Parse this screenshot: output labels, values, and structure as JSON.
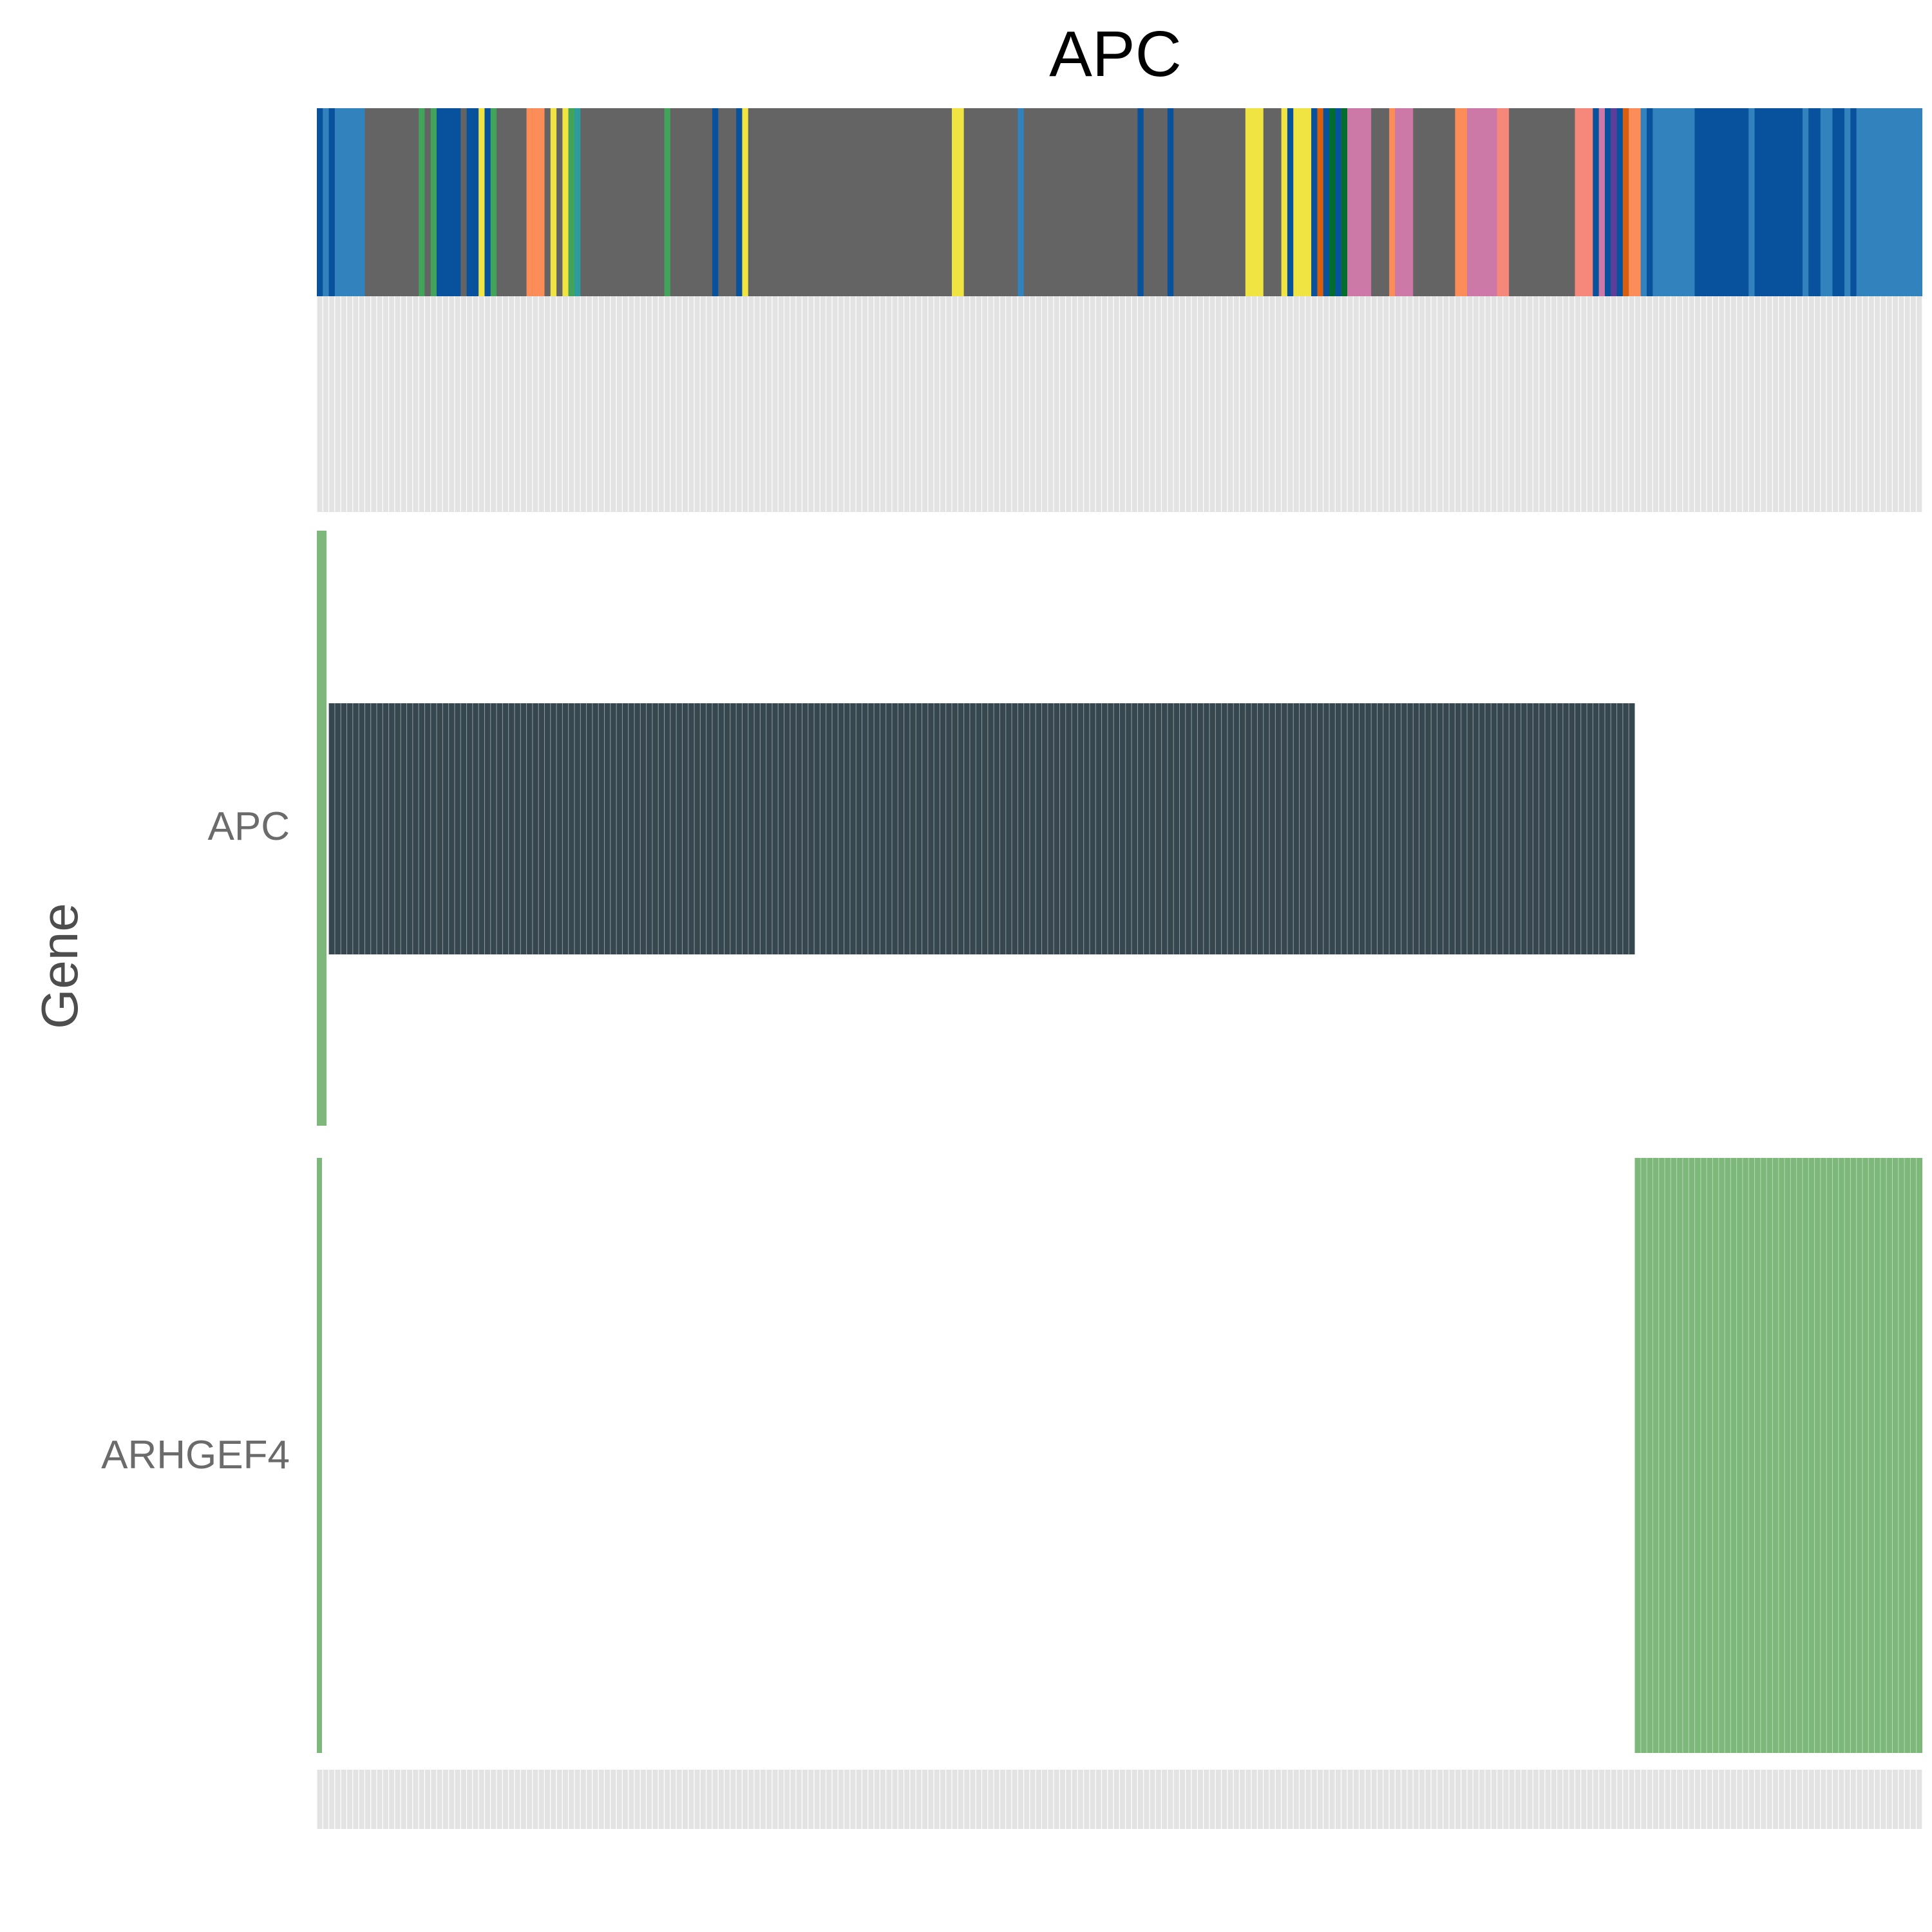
{
  "chart_data": {
    "type": "heatmap",
    "title": "APC",
    "ylabel": "Gene",
    "genes": [
      "APC",
      "ARHGEF4"
    ],
    "n_samples": 268,
    "colors": {
      "gray": "#646464",
      "blue_mid": "#3182bd",
      "blue_dark": "#08519c",
      "green": "#41a45a",
      "yellow": "#f0e442",
      "orange": "#fc8d59",
      "pink": "#cc79a7",
      "salmon": "#f5877b",
      "dkgreen": "#006d2c",
      "rust": "#d95f0e",
      "purple": "#5e3c99",
      "teal": "#2c9c9c",
      "mutation_dark": "#37474f",
      "cnv_green": "#7db87a",
      "bar_green": "#7db87a",
      "empty_cell": "#e3e3e3"
    },
    "annotation_track": [
      {
        "color": "gray",
        "start": 0,
        "end": 268
      },
      {
        "color": "blue_dark",
        "start": 0,
        "end": 1
      },
      {
        "color": "blue_mid",
        "start": 1,
        "end": 2
      },
      {
        "color": "blue_dark",
        "start": 2,
        "end": 3
      },
      {
        "color": "blue_mid",
        "start": 3,
        "end": 8
      },
      {
        "color": "green",
        "start": 17,
        "end": 18
      },
      {
        "color": "green",
        "start": 19,
        "end": 20
      },
      {
        "color": "blue_dark",
        "start": 20,
        "end": 24
      },
      {
        "color": "blue_dark",
        "start": 25,
        "end": 27
      },
      {
        "color": "yellow",
        "start": 27,
        "end": 28
      },
      {
        "color": "blue_dark",
        "start": 28,
        "end": 29
      },
      {
        "color": "green",
        "start": 29,
        "end": 30
      },
      {
        "color": "orange",
        "start": 35,
        "end": 36
      },
      {
        "color": "orange",
        "start": 36,
        "end": 38
      },
      {
        "color": "yellow",
        "start": 39,
        "end": 40
      },
      {
        "color": "yellow",
        "start": 41,
        "end": 42
      },
      {
        "color": "green",
        "start": 42,
        "end": 43
      },
      {
        "color": "teal",
        "start": 43,
        "end": 44
      },
      {
        "color": "green",
        "start": 58,
        "end": 59
      },
      {
        "color": "blue_dark",
        "start": 66,
        "end": 67
      },
      {
        "color": "blue_dark",
        "start": 70,
        "end": 71
      },
      {
        "color": "yellow",
        "start": 71,
        "end": 72
      },
      {
        "color": "yellow",
        "start": 106,
        "end": 108
      },
      {
        "color": "blue_mid",
        "start": 117,
        "end": 118
      },
      {
        "color": "blue_dark",
        "start": 137,
        "end": 138
      },
      {
        "color": "blue_dark",
        "start": 142,
        "end": 143
      },
      {
        "color": "yellow",
        "start": 155,
        "end": 158
      },
      {
        "color": "yellow",
        "start": 161,
        "end": 162
      },
      {
        "color": "blue_dark",
        "start": 162,
        "end": 163
      },
      {
        "color": "yellow",
        "start": 163,
        "end": 166
      },
      {
        "color": "blue_dark",
        "start": 166,
        "end": 167
      },
      {
        "color": "rust",
        "start": 167,
        "end": 168
      },
      {
        "color": "blue_dark",
        "start": 168,
        "end": 169
      },
      {
        "color": "dkgreen",
        "start": 169,
        "end": 170
      },
      {
        "color": "blue_dark",
        "start": 170,
        "end": 171
      },
      {
        "color": "dkgreen",
        "start": 171,
        "end": 172
      },
      {
        "color": "pink",
        "start": 172,
        "end": 176
      },
      {
        "color": "orange",
        "start": 179,
        "end": 180
      },
      {
        "color": "pink",
        "start": 180,
        "end": 183
      },
      {
        "color": "orange",
        "start": 190,
        "end": 192
      },
      {
        "color": "pink",
        "start": 192,
        "end": 197
      },
      {
        "color": "salmon",
        "start": 197,
        "end": 199
      },
      {
        "color": "salmon",
        "start": 210,
        "end": 213
      },
      {
        "color": "blue_dark",
        "start": 213,
        "end": 214
      },
      {
        "color": "pink",
        "start": 214,
        "end": 215
      },
      {
        "color": "blue_dark",
        "start": 215,
        "end": 216
      },
      {
        "color": "purple",
        "start": 216,
        "end": 217
      },
      {
        "color": "blue_dark",
        "start": 217,
        "end": 218
      },
      {
        "color": "rust",
        "start": 218,
        "end": 219
      },
      {
        "color": "orange",
        "start": 219,
        "end": 221
      },
      {
        "color": "blue_mid",
        "start": 221,
        "end": 222
      },
      {
        "color": "blue_dark",
        "start": 222,
        "end": 223
      },
      {
        "color": "blue_mid",
        "start": 223,
        "end": 230
      },
      {
        "color": "blue_dark",
        "start": 230,
        "end": 239
      },
      {
        "color": "blue_mid",
        "start": 239,
        "end": 240
      },
      {
        "color": "blue_dark",
        "start": 240,
        "end": 248
      },
      {
        "color": "blue_mid",
        "start": 248,
        "end": 249
      },
      {
        "color": "blue_dark",
        "start": 249,
        "end": 251
      },
      {
        "color": "blue_mid",
        "start": 251,
        "end": 253
      },
      {
        "color": "blue_dark",
        "start": 253,
        "end": 255
      },
      {
        "color": "blue_mid",
        "start": 255,
        "end": 256
      },
      {
        "color": "blue_dark",
        "start": 256,
        "end": 257
      },
      {
        "color": "blue_mid",
        "start": 257,
        "end": 268
      }
    ],
    "rows": [
      {
        "gene": "APC",
        "side_bar": "bar_green",
        "filled": [
          {
            "start": 2,
            "end": 220,
            "color": "mutation_dark"
          }
        ]
      },
      {
        "gene": "ARHGEF4",
        "side_bar": "bar_green",
        "filled": [
          {
            "start": 220,
            "end": 268,
            "color": "cnv_green"
          }
        ]
      }
    ]
  }
}
